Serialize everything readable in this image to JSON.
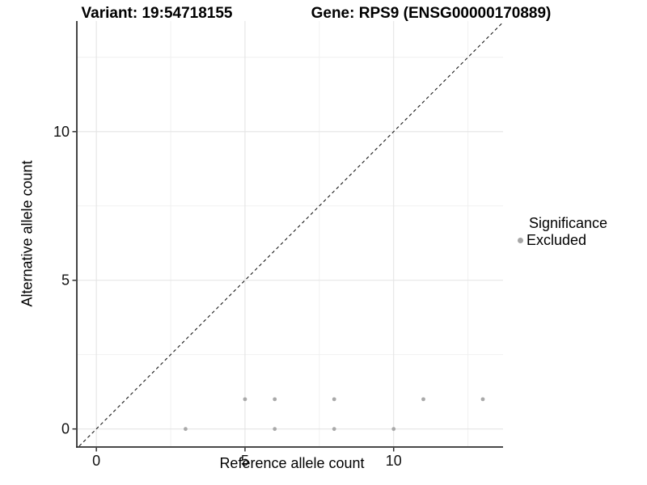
{
  "titles": {
    "variant": "Variant: 19:54718155",
    "gene": "Gene: RPS9 (ENSG00000170889)"
  },
  "chart_data": {
    "type": "scatter",
    "xlabel": "Reference allele count",
    "ylabel": "Alternative allele count",
    "xlim": [
      -0.63,
      13.68
    ],
    "ylim": [
      -0.58,
      13.72
    ],
    "x_ticks": [
      0,
      5,
      10
    ],
    "y_ticks": [
      0,
      5,
      10
    ],
    "x_minor_gridlines": [
      2.5,
      7.5,
      12.5
    ],
    "y_minor_gridlines": [
      2.5,
      7.5,
      12.5
    ],
    "grid": "on",
    "legend_position": "right",
    "series": [
      {
        "name": "Excluded",
        "color": "#a9a9a9",
        "points": [
          [
            3,
            0
          ],
          [
            6,
            0
          ],
          [
            8,
            0
          ],
          [
            10,
            0
          ],
          [
            5,
            1
          ],
          [
            6,
            1
          ],
          [
            8,
            1
          ],
          [
            11,
            1
          ],
          [
            13,
            1
          ]
        ]
      }
    ],
    "reference_line": {
      "type": "identity",
      "slope": 1,
      "intercept": 0,
      "style": "dashed",
      "color": "#1a1a1a"
    },
    "legend": {
      "title": "Significance",
      "items": [
        {
          "label": "Excluded",
          "color": "#a6a6a6"
        }
      ]
    },
    "colors": {
      "background": "#ffffff",
      "major_grid": "#e4e4e4",
      "minor_grid": "#efefef",
      "axis_line": "#2f2f2f",
      "tick_label": "#111111",
      "point": "#a9a9a9"
    }
  }
}
